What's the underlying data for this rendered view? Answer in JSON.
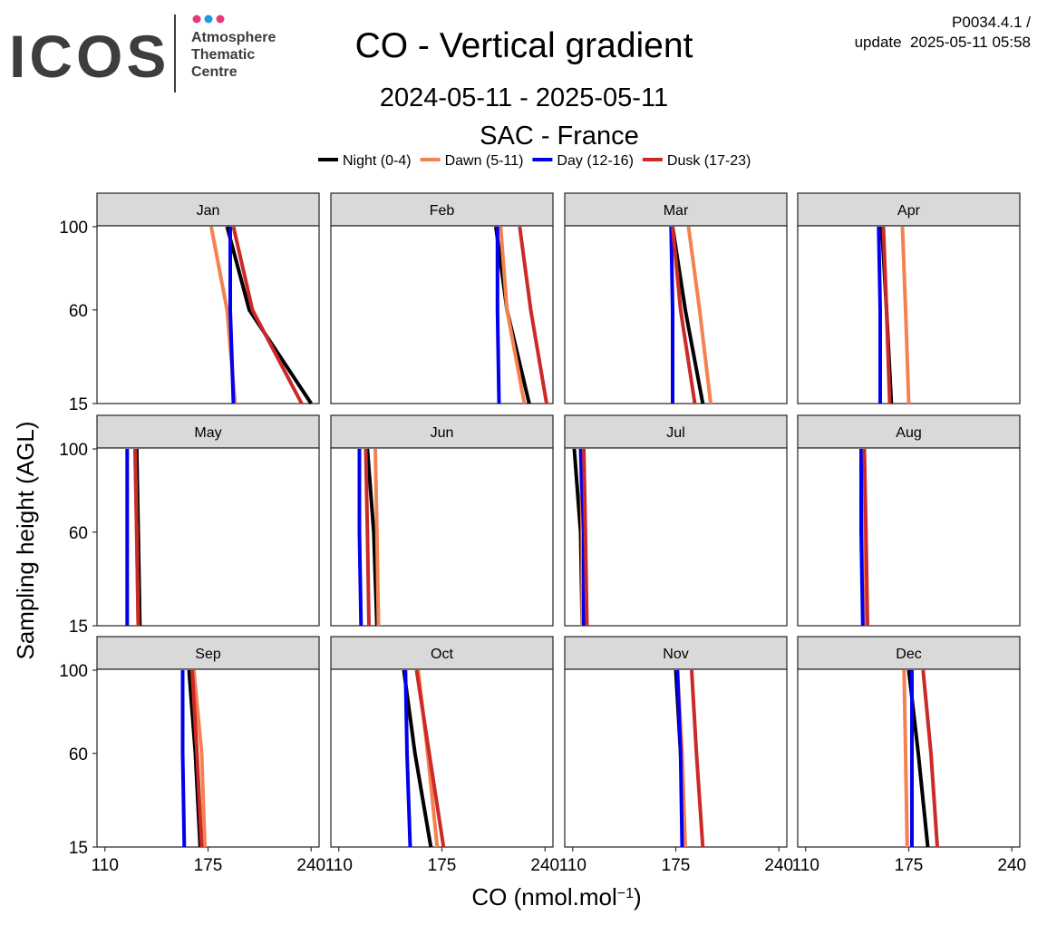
{
  "header": {
    "logo_text": "ICOS",
    "logo_subtitle": [
      "Atmosphere",
      "Thematic",
      "Centre"
    ],
    "logo_dot_colors": [
      "#e63b7a",
      "#1e9be0",
      "#e63b7a"
    ],
    "version": "P0034.4.1 /",
    "update": "update  2025-05-11 05:58"
  },
  "chart_data": {
    "type": "line",
    "title": "CO - Vertical gradient",
    "subtitle": "2024-05-11 - 2025-05-11",
    "station": "SAC - France",
    "xlabel": "CO (nmol.mol",
    "xlabel_sup": "−1",
    "xlabel_tail": ")",
    "ylabel": "Sampling height (AGL)",
    "xlim": [
      105,
      245
    ],
    "x_ticks": [
      110,
      175,
      240
    ],
    "x_tick_labels": [
      "110",
      "175",
      "240"
    ],
    "y_ticks": [
      15,
      60,
      100
    ],
    "y_tick_labels": [
      "15",
      "60",
      "100"
    ],
    "y_levels": [
      15,
      60,
      100
    ],
    "legend_position": "top",
    "grid": false,
    "series": [
      {
        "name": "Night (0-4)",
        "color": "#000000"
      },
      {
        "name": "Dawn (5-11)",
        "color": "#f58150"
      },
      {
        "name": "Day (12-16)",
        "color": "#0000ee"
      },
      {
        "name": "Dusk (17-23)",
        "color": "#cc2929"
      }
    ],
    "panels": [
      {
        "month": "Jan",
        "values": [
          [
            240,
            201,
            187
          ],
          [
            192,
            187,
            177
          ],
          [
            191,
            189,
            189
          ],
          [
            234,
            203,
            191
          ]
        ]
      },
      {
        "month": "Feb",
        "values": [
          [
            230,
            216,
            209
          ],
          [
            227,
            216,
            212
          ],
          [
            211,
            210,
            210
          ],
          [
            241,
            231,
            224
          ]
        ]
      },
      {
        "month": "Mar",
        "values": [
          [
            192,
            181,
            173
          ],
          [
            197,
            190,
            183
          ],
          [
            173,
            173,
            172
          ],
          [
            187,
            178,
            173
          ]
        ]
      },
      {
        "month": "Apr",
        "values": [
          [
            164,
            161,
            158
          ],
          [
            175,
            173,
            171
          ],
          [
            157,
            157,
            156
          ],
          [
            163,
            161,
            159
          ]
        ]
      },
      {
        "month": "May",
        "values": [
          [
            132,
            131,
            130
          ],
          [
            131,
            130,
            129
          ],
          [
            124,
            124,
            124
          ],
          [
            131,
            130,
            129
          ]
        ]
      },
      {
        "month": "Jun",
        "values": [
          [
            134,
            132,
            128
          ],
          [
            135,
            134,
            133
          ],
          [
            124,
            123,
            123
          ],
          [
            129,
            128,
            127
          ]
        ]
      },
      {
        "month": "Jul",
        "values": [
          [
            116,
            115,
            111
          ],
          [
            116,
            116,
            115
          ],
          [
            117,
            117,
            115
          ],
          [
            119,
            118,
            117
          ]
        ]
      },
      {
        "month": "Aug",
        "values": [
          [
            147,
            147,
            145
          ],
          [
            148,
            147,
            146
          ],
          [
            146,
            145,
            145
          ],
          [
            149,
            148,
            147
          ]
        ]
      },
      {
        "month": "Sep",
        "values": [
          [
            170,
            167,
            163
          ],
          [
            173,
            171,
            166
          ],
          [
            160,
            159,
            159
          ],
          [
            171,
            168,
            165
          ]
        ]
      },
      {
        "month": "Oct",
        "values": [
          [
            168,
            158,
            151
          ],
          [
            172,
            166,
            160
          ],
          [
            155,
            153,
            152
          ],
          [
            176,
            167,
            159
          ]
        ]
      },
      {
        "month": "Nov",
        "values": [
          [
            180,
            178,
            175
          ],
          [
            181,
            179,
            176
          ],
          [
            179,
            178,
            176
          ],
          [
            192,
            188,
            185
          ]
        ]
      },
      {
        "month": "Dec",
        "values": [
          [
            187,
            181,
            175
          ],
          [
            174,
            173,
            172
          ],
          [
            177,
            177,
            177
          ],
          [
            193,
            189,
            184
          ]
        ]
      }
    ]
  }
}
